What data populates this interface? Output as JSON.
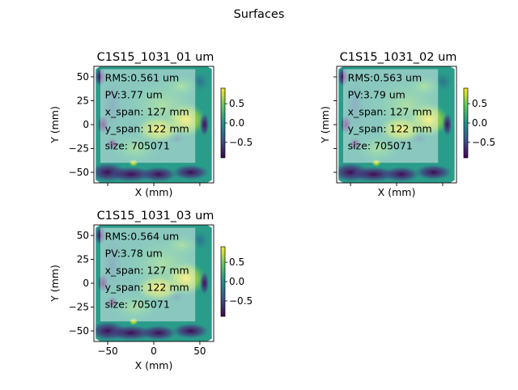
{
  "figure": {
    "title": "Surfaces"
  },
  "chart_data": [
    {
      "type": "heatmap",
      "title": "C1S15_1031_01 um",
      "xlabel": "X (mm)",
      "ylabel": "Y (mm)",
      "xlim": [
        -65,
        65
      ],
      "ylim": [
        -61,
        61
      ],
      "xticks": [
        -50,
        0,
        50
      ],
      "xtick_labels_shown": false,
      "yticks": [
        -50,
        -25,
        0,
        25,
        50
      ],
      "colorbar": {
        "ticks": [
          0.5,
          0.0,
          -0.5
        ],
        "tick_labels": [
          "0.5",
          "0.0",
          "−0.5"
        ],
        "range": [
          -0.9,
          0.9
        ],
        "colormap": "viridis"
      },
      "annotations": [
        "RMS:0.561 um",
        "PV:3.77 um",
        "x_span: 127 mm",
        "y_span: 122 mm",
        "size: 705071"
      ]
    },
    {
      "type": "heatmap",
      "title": "C1S15_1031_02 um",
      "xlabel": "X (mm)",
      "ylabel": "Y (mm)",
      "xlim": [
        -65,
        65
      ],
      "ylim": [
        -61,
        61
      ],
      "xticks": [
        -50,
        0,
        50
      ],
      "xtick_labels_shown": false,
      "yticks": [
        -50,
        -25,
        0,
        25,
        50
      ],
      "ytick_labels_shown": false,
      "colorbar": {
        "ticks": [
          0.5,
          0.0,
          -0.5
        ],
        "tick_labels": [
          "0.5",
          "0.0",
          "−0.5"
        ],
        "range": [
          -0.9,
          0.9
        ],
        "colormap": "viridis"
      },
      "annotations": [
        "RMS:0.563 um",
        "PV:3.79 um",
        "x_span: 127 mm",
        "y_span: 122 mm",
        "size: 705071"
      ]
    },
    {
      "type": "heatmap",
      "title": "C1S15_1031_03 um",
      "xlabel": "X (mm)",
      "ylabel": "Y (mm)",
      "xlim": [
        -65,
        65
      ],
      "ylim": [
        -61,
        61
      ],
      "xticks": [
        -50,
        0,
        50
      ],
      "yticks": [
        -50,
        -25,
        0,
        25,
        50
      ],
      "colorbar": {
        "ticks": [
          0.5,
          0.0,
          -0.5
        ],
        "tick_labels": [
          "0.5",
          "0.0",
          "−0.5"
        ],
        "range": [
          -0.9,
          0.9
        ],
        "colormap": "viridis"
      },
      "annotations": [
        "RMS:0.564 um",
        "PV:3.78 um",
        "x_span: 127 mm",
        "y_span: 122 mm",
        "size: 705071"
      ]
    }
  ]
}
